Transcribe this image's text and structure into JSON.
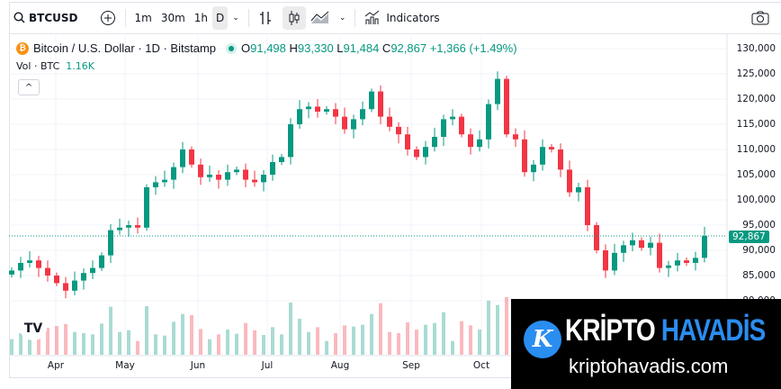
{
  "toolbar": {
    "symbol": "BTCUSD",
    "intervals": [
      "1m",
      "30m",
      "1h",
      "D"
    ],
    "active_interval": "D",
    "indicators_label": "Indicators"
  },
  "legend": {
    "name": "Bitcoin / U.S. Dollar · 1D · Bitstamp",
    "coin_glyph": "₿",
    "open_label": "O",
    "open": "91,498",
    "high_label": "H",
    "high": "93,330",
    "low_label": "L",
    "low": "91,484",
    "close_label": "C",
    "close": "92,867",
    "change": "+1,366 (+1.49%)",
    "vol_label": "Vol · BTC",
    "vol_value": "1.16K",
    "up_color": "#089981",
    "down_color": "#f23645"
  },
  "chart_data": {
    "type": "candlestick",
    "yticks": [
      "130,000",
      "125,000",
      "120,000",
      "115,000",
      "110,000",
      "105,000",
      "100,000",
      "95,000",
      "90,000",
      "85,000",
      "80,000"
    ],
    "ylim": [
      80000,
      130000
    ],
    "xticks": [
      "Apr",
      "May",
      "Jun",
      "Jul",
      "Aug",
      "Sep",
      "Oct"
    ],
    "last_price": 92867,
    "last_price_label": "92,867",
    "closes": [
      86000,
      87500,
      88000,
      86500,
      85000,
      83500,
      82000,
      84000,
      85500,
      86500,
      89000,
      94000,
      94500,
      95000,
      94500,
      102500,
      103500,
      104000,
      106500,
      110000,
      107000,
      104500,
      105000,
      104000,
      105500,
      106000,
      104000,
      103500,
      105000,
      107500,
      108500,
      115000,
      118000,
      118500,
      117500,
      118000,
      116500,
      114000,
      116000,
      118000,
      121500,
      116500,
      114500,
      113000,
      110000,
      108500,
      110500,
      112500,
      116000,
      116500,
      113000,
      110500,
      112000,
      119000,
      124000,
      113000,
      112000,
      105500,
      107000,
      110500,
      110000,
      106000,
      101500,
      102500,
      95000,
      90000,
      86000,
      89500,
      91000,
      92000,
      90500,
      91500,
      86500,
      87000,
      88000,
      87500,
      88500,
      92867
    ]
  },
  "watermark": {
    "brand_a": "KRİPTO",
    "brand_b": "HAVADİS",
    "url": "kriptohavadis.com",
    "icon_glyph": "K"
  }
}
